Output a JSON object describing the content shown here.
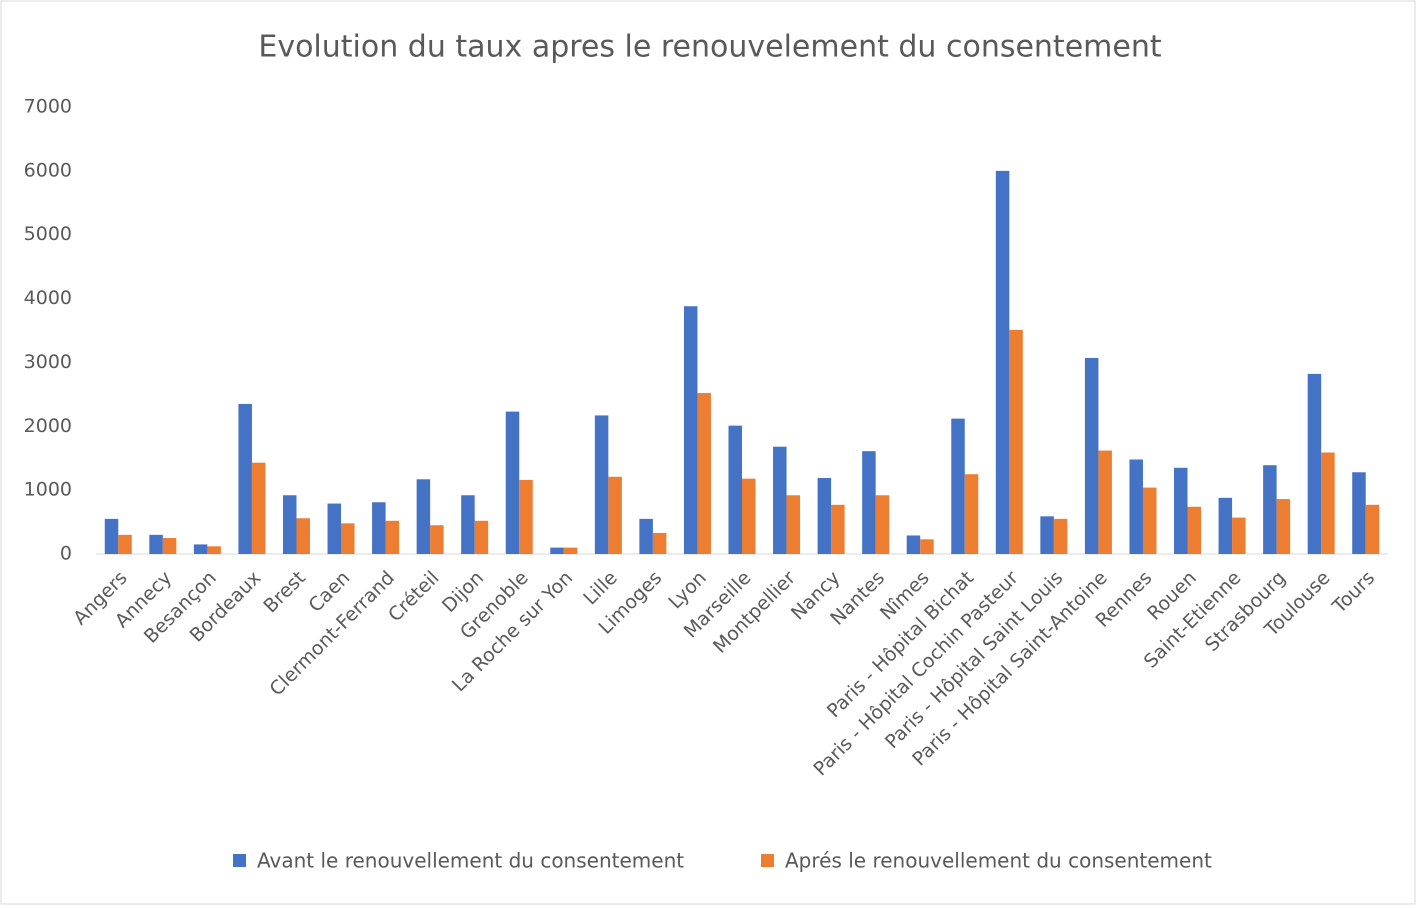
{
  "chart_data": {
    "type": "bar",
    "title": "Evolution du taux apres le renouvelement du consentement",
    "categories": [
      "Angers",
      "Annecy",
      "Besançon",
      "Bordeaux",
      "Brest",
      "Caen",
      "Clermont-Ferrand",
      "Créteil",
      "Dijon",
      "Grenoble",
      "La Roche sur Yon",
      "Lille",
      "Limoges",
      "Lyon",
      "Marseille",
      "Montpellier",
      "Nancy",
      "Nantes",
      "Nîmes",
      "Paris - Hôpital Bichat",
      "Paris - Hôpital Cochin Pasteur",
      "Paris - Hôpital Saint Louis",
      "Paris - Hôpital Saint-Antoine",
      "Rennes",
      "Rouen",
      "Saint-Etienne",
      "Strasbourg",
      "Toulouse",
      "Tours"
    ],
    "series": [
      {
        "name": "Avant le renouvellement du consentement",
        "color": "#4472c4",
        "values": [
          550,
          300,
          150,
          2350,
          920,
          790,
          810,
          1170,
          920,
          2230,
          100,
          2170,
          550,
          3880,
          2010,
          1680,
          1190,
          1610,
          290,
          2120,
          6000,
          590,
          3070,
          1480,
          1350,
          880,
          1390,
          2820,
          1280
        ]
      },
      {
        "name": "Aprés le renouvellement du consentement",
        "color": "#ed7d31",
        "values": [
          300,
          250,
          120,
          1430,
          560,
          480,
          520,
          450,
          520,
          1160,
          100,
          1210,
          330,
          2520,
          1180,
          920,
          770,
          920,
          230,
          1250,
          3510,
          550,
          1620,
          1040,
          740,
          570,
          860,
          1590,
          770
        ]
      }
    ],
    "ylim": [
      0,
      7000
    ],
    "yticks": [
      0,
      1000,
      2000,
      3000,
      4000,
      5000,
      6000,
      7000
    ],
    "grid": false,
    "legend": "bottom"
  }
}
